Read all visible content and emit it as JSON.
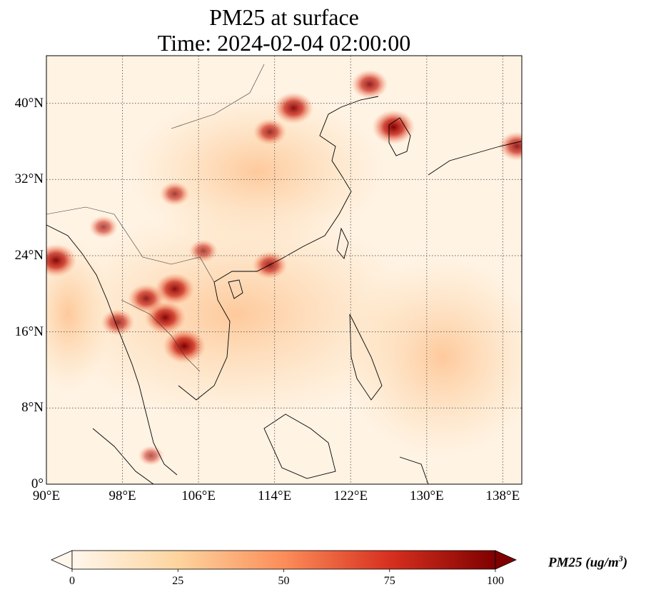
{
  "title_line1": "PM25 at surface",
  "title_line2": "Time: 2024-02-04 02:00:00",
  "map": {
    "lon_range": [
      90,
      140
    ],
    "lat_range": [
      0,
      45
    ],
    "grid": "dotted",
    "lon_ticks": [
      {
        "value": 90,
        "label": "90°E"
      },
      {
        "value": 98,
        "label": "98°E"
      },
      {
        "value": 106,
        "label": "106°E"
      },
      {
        "value": 114,
        "label": "114°E"
      },
      {
        "value": 122,
        "label": "122°E"
      },
      {
        "value": 130,
        "label": "130°E"
      },
      {
        "value": 138,
        "label": "138°E"
      }
    ],
    "lat_ticks": [
      {
        "value": 0,
        "label": "0°"
      },
      {
        "value": 8,
        "label": "8°N"
      },
      {
        "value": 16,
        "label": "16°N"
      },
      {
        "value": 24,
        "label": "24°N"
      },
      {
        "value": 32,
        "label": "32°N"
      },
      {
        "value": 40,
        "label": "40°N"
      }
    ]
  },
  "colorbar": {
    "colormap": "OrRd",
    "colors": [
      "#fff7ec",
      "#fdd49e",
      "#fc8d59",
      "#d7301f",
      "#7f0000"
    ],
    "range": [
      0,
      100
    ],
    "extend": "both",
    "ticks": [
      {
        "value": 0,
        "label": "0"
      },
      {
        "value": 25,
        "label": "25"
      },
      {
        "value": 50,
        "label": "50"
      },
      {
        "value": 75,
        "label": "75"
      },
      {
        "value": 100,
        "label": "100"
      }
    ],
    "label_main": "PM25 (ug/m",
    "label_sup": "3",
    "label_close": ")"
  },
  "hotspots": [
    {
      "lon": 104.5,
      "lat": 14.5,
      "value": 100
    },
    {
      "lon": 102.5,
      "lat": 17.5,
      "value": 95
    },
    {
      "lon": 103.5,
      "lat": 20.5,
      "value": 90
    },
    {
      "lon": 100.5,
      "lat": 19.5,
      "value": 80
    },
    {
      "lon": 91.0,
      "lat": 23.5,
      "value": 95
    },
    {
      "lon": 97.5,
      "lat": 17.0,
      "value": 70
    },
    {
      "lon": 116.0,
      "lat": 39.5,
      "value": 90
    },
    {
      "lon": 113.5,
      "lat": 37.0,
      "value": 70
    },
    {
      "lon": 126.5,
      "lat": 37.5,
      "value": 100
    },
    {
      "lon": 124.0,
      "lat": 42.0,
      "value": 80
    },
    {
      "lon": 113.5,
      "lat": 23.0,
      "value": 75
    },
    {
      "lon": 103.5,
      "lat": 30.5,
      "value": 60
    },
    {
      "lon": 106.5,
      "lat": 24.5,
      "value": 55
    },
    {
      "lon": 139.5,
      "lat": 35.5,
      "value": 80
    },
    {
      "lon": 101.0,
      "lat": 3.0,
      "value": 45
    },
    {
      "lon": 96.0,
      "lat": 27.0,
      "value": 55
    }
  ]
}
